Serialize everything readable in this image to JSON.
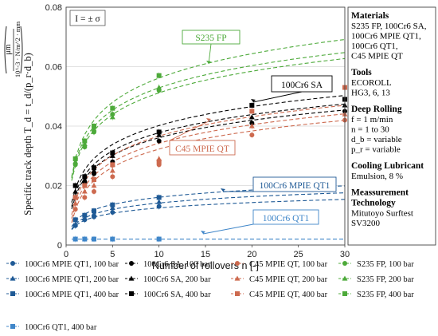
{
  "chart_data": {
    "type": "scatter",
    "x_axis": {
      "label": "Number of rollovers n [-]",
      "range": [
        0,
        30
      ],
      "ticks": [
        "0",
        "5",
        "10",
        "15",
        "20",
        "25",
        "30"
      ]
    },
    "y_axis": {
      "label": "Specific track depth T_d = t_d/(p_r·d_b)",
      "unit_top": "μm",
      "unit_bottom": "10^-3 · N/m^2 · mm",
      "range": [
        0,
        0.08
      ],
      "ticks": [
        "0",
        "0.02",
        "0.04",
        "0.06",
        "0.08"
      ]
    },
    "grid": "horizontal",
    "legend_position": "bottom",
    "error_note": "I = ± σ",
    "info_panel": {
      "sections": [
        {
          "title": "Materials",
          "lines": [
            "S235 FP, 100Cr6 SA,",
            "100Cr6 MPIE QT1,",
            "100Cr6 QT1,",
            "C45 MPIE QT"
          ]
        },
        {
          "title": "Tools",
          "lines": [
            "ECOROLL",
            "HG3, 6, 13"
          ]
        },
        {
          "title": "Deep Rolling",
          "lines": [
            "f = 1 m/min",
            "n = 1 to 30",
            "d_b = variable",
            "p_r = variable"
          ]
        },
        {
          "title": "Cooling Lubricant",
          "lines": [
            "Emulsion, 8 %"
          ]
        },
        {
          "title": "Meassurement Technology",
          "lines": [
            "Mitutoyo Surftest",
            "SV3200"
          ]
        }
      ]
    },
    "annotations": [
      {
        "text": "S235 FP",
        "color": "#4daa3a"
      },
      {
        "text": "100Cr6 SA",
        "color": "#000000"
      },
      {
        "text": "C45 MPIE QT",
        "color": "#cd6a4f"
      },
      {
        "text": "100Cr6 MPIE QT1",
        "color": "#1f5a96"
      },
      {
        "text": "100Cr6 QT1",
        "color": "#3f86c9"
      }
    ],
    "series": [
      {
        "name": "100Cr6 MPIE QT1, 100 bar",
        "color": "#1f5a96",
        "marker": "circle",
        "x": [
          1,
          2,
          3,
          5,
          10
        ],
        "y": [
          0.0065,
          0.0085,
          0.0095,
          0.011,
          0.013
        ],
        "fit": {
          "a": 0.0065,
          "b": 0.0026
        }
      },
      {
        "name": "100Cr6 SA, 100 bar",
        "color": "#000000",
        "marker": "circle",
        "x": [
          1,
          2,
          3,
          5,
          10,
          20,
          30
        ],
        "y": [
          0.016,
          0.021,
          0.024,
          0.028,
          0.035,
          0.041,
          0.045
        ],
        "fit": {
          "a": 0.0165,
          "b": 0.0085
        }
      },
      {
        "name": "C45 MPIE QT, 100 bar",
        "color": "#cd6a4f",
        "marker": "circle",
        "x": [
          1,
          2,
          3,
          5,
          10,
          20,
          30
        ],
        "y": [
          0.012,
          0.016,
          0.018,
          0.023,
          0.027,
          0.037,
          0.042
        ],
        "fit": {
          "a": 0.012,
          "b": 0.0088
        }
      },
      {
        "name": "S235 FP, 100 bar",
        "color": "#4daa3a",
        "marker": "circle",
        "x": [
          1,
          2,
          3,
          5,
          10
        ],
        "y": [
          0.027,
          0.033,
          0.038,
          0.044,
          0.052
        ],
        "fit": {
          "a": 0.027,
          "b": 0.0105
        }
      },
      {
        "name": "100Cr6 MPIE QT1, 200 bar",
        "color": "#1f5a96",
        "marker": "triangle",
        "x": [
          1,
          2,
          3,
          5,
          10
        ],
        "y": [
          0.007,
          0.009,
          0.0105,
          0.0125,
          0.0145
        ],
        "fit": {
          "a": 0.007,
          "b": 0.0031
        }
      },
      {
        "name": "100Cr6 SA, 200 bar",
        "color": "#000000",
        "marker": "triangle",
        "x": [
          1,
          2,
          3,
          5,
          10,
          20,
          30
        ],
        "y": [
          0.018,
          0.022,
          0.025,
          0.03,
          0.037,
          0.043,
          0.047
        ],
        "fit": {
          "a": 0.0175,
          "b": 0.0088
        }
      },
      {
        "name": "C45 MPIE QT, 200 bar",
        "color": "#cd6a4f",
        "marker": "triangle",
        "x": [
          1,
          2,
          3,
          5,
          10,
          20,
          30
        ],
        "y": [
          0.014,
          0.018,
          0.02,
          0.025,
          0.029,
          0.04,
          0.044
        ],
        "fit": {
          "a": 0.0135,
          "b": 0.009
        }
      },
      {
        "name": "S235 FP, 200 bar",
        "color": "#4daa3a",
        "marker": "triangle",
        "x": [
          1,
          2,
          3,
          5,
          10
        ],
        "y": [
          0.028,
          0.034,
          0.039,
          0.043,
          0.053
        ],
        "fit": {
          "a": 0.028,
          "b": 0.0108
        }
      },
      {
        "name": "100Cr6 MPIE QT1, 400 bar",
        "color": "#1f5a96",
        "marker": "square",
        "x": [
          1,
          2,
          3,
          5,
          10
        ],
        "y": [
          0.0085,
          0.01,
          0.0115,
          0.0135,
          0.016
        ],
        "fit": {
          "a": 0.008,
          "b": 0.0035
        }
      },
      {
        "name": "100Cr6 SA, 400 bar",
        "color": "#000000",
        "marker": "square",
        "x": [
          1,
          2,
          3,
          5,
          10,
          20,
          30
        ],
        "y": [
          0.02,
          0.023,
          0.026,
          0.031,
          0.038,
          0.047,
          0.049
        ],
        "fit": {
          "a": 0.019,
          "b": 0.0092
        }
      },
      {
        "name": "C45 MPIE QT, 400 bar",
        "color": "#cd6a4f",
        "marker": "square",
        "x": [
          1,
          2,
          3,
          5,
          10,
          20,
          30
        ],
        "y": [
          0.016,
          0.02,
          0.022,
          0.027,
          0.028,
          0.045,
          0.053
        ],
        "fit": {
          "a": 0.015,
          "b": 0.0094
        }
      },
      {
        "name": "S235 FP, 400 bar",
        "color": "#4daa3a",
        "marker": "square",
        "x": [
          1,
          2,
          3,
          5,
          10
        ],
        "y": [
          0.029,
          0.035,
          0.04,
          0.046,
          0.057
        ],
        "fit": {
          "a": 0.029,
          "b": 0.0118
        }
      },
      {
        "name": "100Cr6 QT1, 400 bar",
        "color": "#3f86c9",
        "marker": "square",
        "x": [
          1,
          2,
          3,
          5,
          10
        ],
        "y": [
          0.002,
          0.002,
          0.002,
          0.002,
          0.002
        ],
        "fit": {
          "a": 0.002,
          "b": 0.0
        }
      }
    ]
  }
}
